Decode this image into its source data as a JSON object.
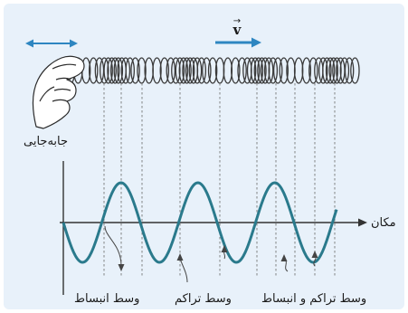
{
  "labels": {
    "velocity": "v",
    "velocity_arrow_mark": "→",
    "displacement_axis": "جابه‌جایی",
    "position_axis": "مکان",
    "rarefaction_center": "وسط انبساط",
    "compression_center": "وسط تراکم",
    "compression_and_rarefaction_center": "وسط تراکم و انبساط"
  },
  "colors": {
    "panel_background": "#e8f1fa",
    "accent_blue": "#2e86c1",
    "wave_teal": "#2a7a8c",
    "spring_line": "#3a3a3a",
    "axis_line": "#333333",
    "dashed_guides": "#777777"
  },
  "icons": {
    "hand": "hand-icon",
    "double_arrow": "double-arrow-icon",
    "velocity_arrow": "arrow-right-icon"
  }
}
